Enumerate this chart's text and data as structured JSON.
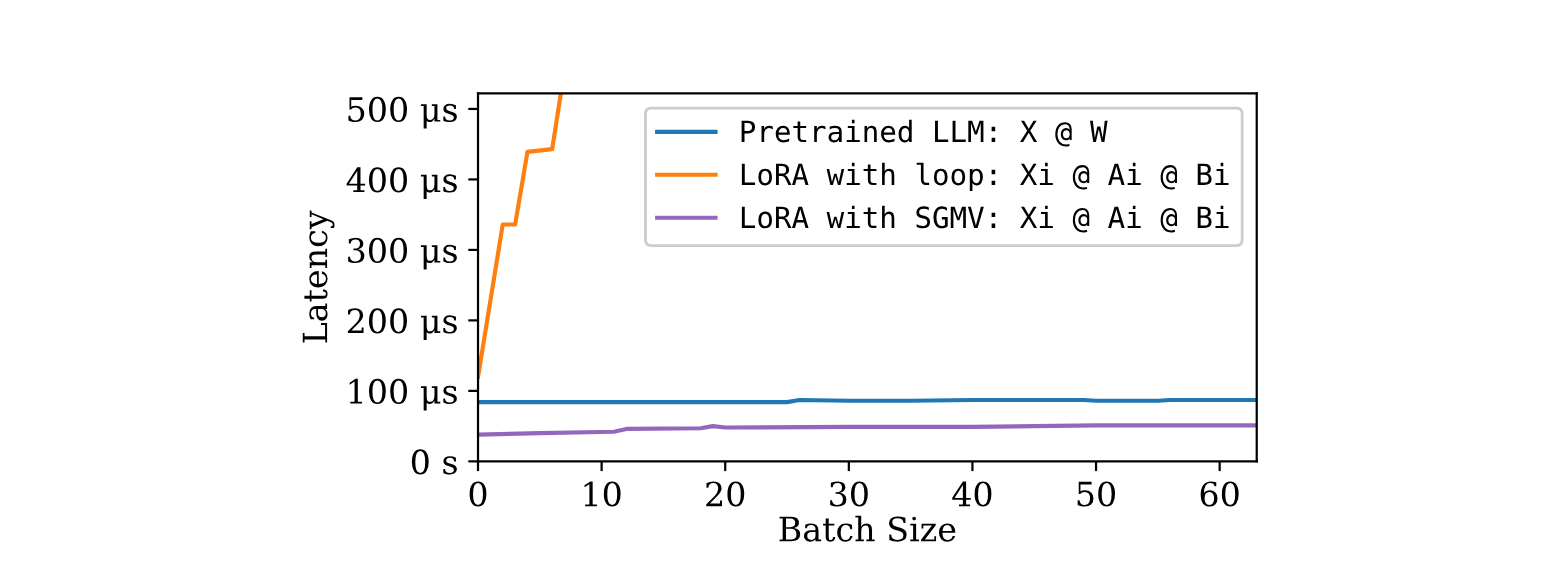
{
  "chart_data": {
    "type": "line",
    "xlabel": "Batch Size",
    "ylabel": "Latency",
    "xlim": [
      0,
      63
    ],
    "xticks": [
      0,
      10,
      20,
      30,
      40,
      50,
      60
    ],
    "ylim": [
      0,
      522
    ],
    "yticks": [
      {
        "value": 0,
        "label": "0 s"
      },
      {
        "value": 100,
        "label": "100 μs"
      },
      {
        "value": 200,
        "label": "200 μs"
      },
      {
        "value": 300,
        "label": "300 μs"
      },
      {
        "value": 400,
        "label": "400 μs"
      },
      {
        "value": 500,
        "label": "500 μs"
      }
    ],
    "legend": "top right",
    "grid": false,
    "marker": "none",
    "line_style": "solid",
    "series": [
      {
        "name": "Pretrained LLM: X @ W",
        "color": "#1f77b4",
        "x": [
          0,
          5,
          10,
          15,
          20,
          25,
          26,
          30,
          35,
          40,
          45,
          49,
          50,
          55,
          56,
          63
        ],
        "values": [
          84,
          84,
          84,
          84,
          84,
          84,
          87,
          86,
          86,
          87,
          87,
          87,
          86,
          86,
          87,
          87
        ]
      },
      {
        "name": "LoRA with loop: Xi @ Ai @ Bi",
        "color": "#ff7f0e",
        "x": [
          0,
          2,
          3,
          4,
          6,
          6.7
        ],
        "values": [
          120,
          336,
          336,
          439,
          443,
          522
        ]
      },
      {
        "name": "LoRA with SGMV: Xi @ Ai @ Bi",
        "color": "#9467bd",
        "x": [
          0,
          5,
          11,
          12,
          18,
          19,
          20,
          30,
          40,
          45,
          50,
          63
        ],
        "values": [
          38,
          40,
          42,
          46,
          47,
          50,
          48,
          49,
          49,
          50,
          51,
          51
        ]
      }
    ]
  }
}
